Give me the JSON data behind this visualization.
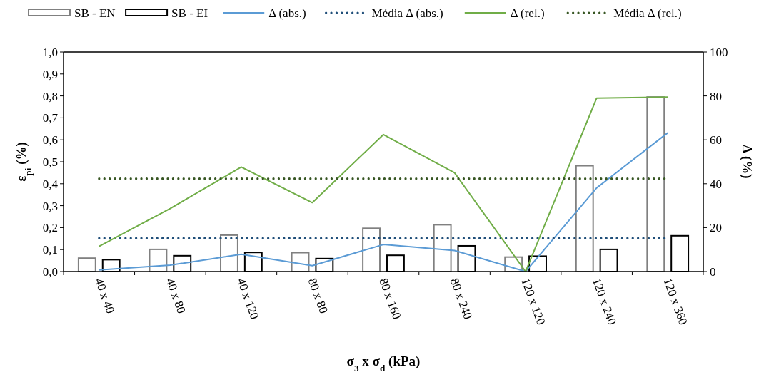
{
  "chart_data": {
    "type": "bar",
    "xlabel": "σ$_{3}$ x σ$_{d}$ (kPa)",
    "ylabel": "ε$_{pi}$ (%)",
    "y2label": "Δ (%)",
    "categories": [
      "40 x 40",
      "40 x 80",
      "40 x 120",
      "80 x 80",
      "80 x 160",
      "80 x 240",
      "120 x 120",
      "120 x 240",
      "120 x 360"
    ],
    "series": [
      {
        "name": "SB - EN",
        "color": "#808080",
        "values": [
          0.061,
          0.101,
          0.166,
          0.086,
          0.197,
          0.213,
          0.066,
          0.482,
          0.795
        ]
      },
      {
        "name": "SB - EI",
        "color": "#000000",
        "values": [
          0.054,
          0.072,
          0.087,
          0.059,
          0.074,
          0.117,
          0.07,
          0.101,
          0.163
        ]
      },
      {
        "name": "Δ (abs.)",
        "type": "line",
        "axis": "y2",
        "color": "#5b9bd5",
        "line_style": "solid",
        "values": [
          0.7,
          2.9,
          7.9,
          2.7,
          12.3,
          9.6,
          0,
          38.1,
          63.2
        ]
      },
      {
        "name": "Média Δ (abs.)",
        "type": "line",
        "axis": "y2",
        "color": "#1f4e79",
        "line_style": "dotted",
        "values": [
          15.2,
          15.2,
          15.2,
          15.2,
          15.2,
          15.2,
          15.2,
          15.2,
          15.2
        ]
      },
      {
        "name": "Δ (rel.)",
        "type": "line",
        "axis": "y2",
        "color": "#70ad47",
        "line_style": "solid",
        "values": [
          11.5,
          28.7,
          47.6,
          31.4,
          62.4,
          45,
          0,
          79,
          79.5
        ]
      },
      {
        "name": "Média Δ (rel.)",
        "type": "line",
        "axis": "y2",
        "color": "#375623",
        "line_style": "dotted",
        "values": [
          42.3,
          42.3,
          42.3,
          42.3,
          42.3,
          42.3,
          42.3,
          42.3,
          42.3
        ]
      }
    ],
    "ylim": [
      0,
      1
    ],
    "yticks": [
      {
        "value": 0,
        "label": "0,0"
      },
      {
        "value": 0.1,
        "label": "0,1"
      },
      {
        "value": 0.2,
        "label": "0,2"
      },
      {
        "value": 0.3,
        "label": "0,3"
      },
      {
        "value": 0.4,
        "label": "0,4"
      },
      {
        "value": 0.5,
        "label": "0,5"
      },
      {
        "value": 0.6,
        "label": "0,6"
      },
      {
        "value": 0.7,
        "label": "0,7"
      },
      {
        "value": 0.8,
        "label": "0,8"
      },
      {
        "value": 0.9,
        "label": "0,9"
      },
      {
        "value": 1,
        "label": "1,0"
      }
    ],
    "y2lim": [
      0,
      100
    ],
    "y2ticks": [
      0,
      20,
      40,
      60,
      80,
      100
    ],
    "legend": "top",
    "grid": false
  }
}
